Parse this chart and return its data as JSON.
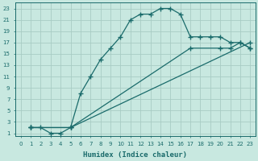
{
  "xlabel": "Humidex (Indice chaleur)",
  "xlim": [
    -0.5,
    23.5
  ],
  "ylim": [
    0.5,
    24
  ],
  "xticks": [
    0,
    1,
    2,
    3,
    4,
    5,
    6,
    7,
    8,
    9,
    10,
    11,
    12,
    13,
    14,
    15,
    16,
    17,
    18,
    19,
    20,
    21,
    22,
    23
  ],
  "yticks": [
    1,
    3,
    5,
    7,
    9,
    11,
    13,
    15,
    17,
    19,
    21,
    23
  ],
  "bg_color": "#c8e8e0",
  "grid_color": "#a8ccc4",
  "line_color": "#1a6b6b",
  "curve1_x": [
    1,
    2,
    3,
    4,
    5,
    6,
    7,
    8,
    9,
    10,
    11,
    12,
    13,
    14,
    15,
    16,
    17,
    18,
    19,
    20,
    21,
    22,
    23
  ],
  "curve1_y": [
    2,
    2,
    1,
    1,
    2,
    8,
    11,
    14,
    16,
    18,
    21,
    22,
    22,
    23,
    23,
    22,
    18,
    18,
    18,
    18,
    17,
    17,
    16
  ],
  "curve2_x": [
    1,
    5,
    23
  ],
  "curve2_y": [
    2,
    2,
    17
  ],
  "curve3_x": [
    1,
    5,
    17,
    20,
    21,
    22,
    23
  ],
  "curve3_y": [
    2,
    2,
    16,
    16,
    16,
    17,
    16
  ],
  "marker": "+",
  "markersize": 4,
  "lw": 0.9
}
